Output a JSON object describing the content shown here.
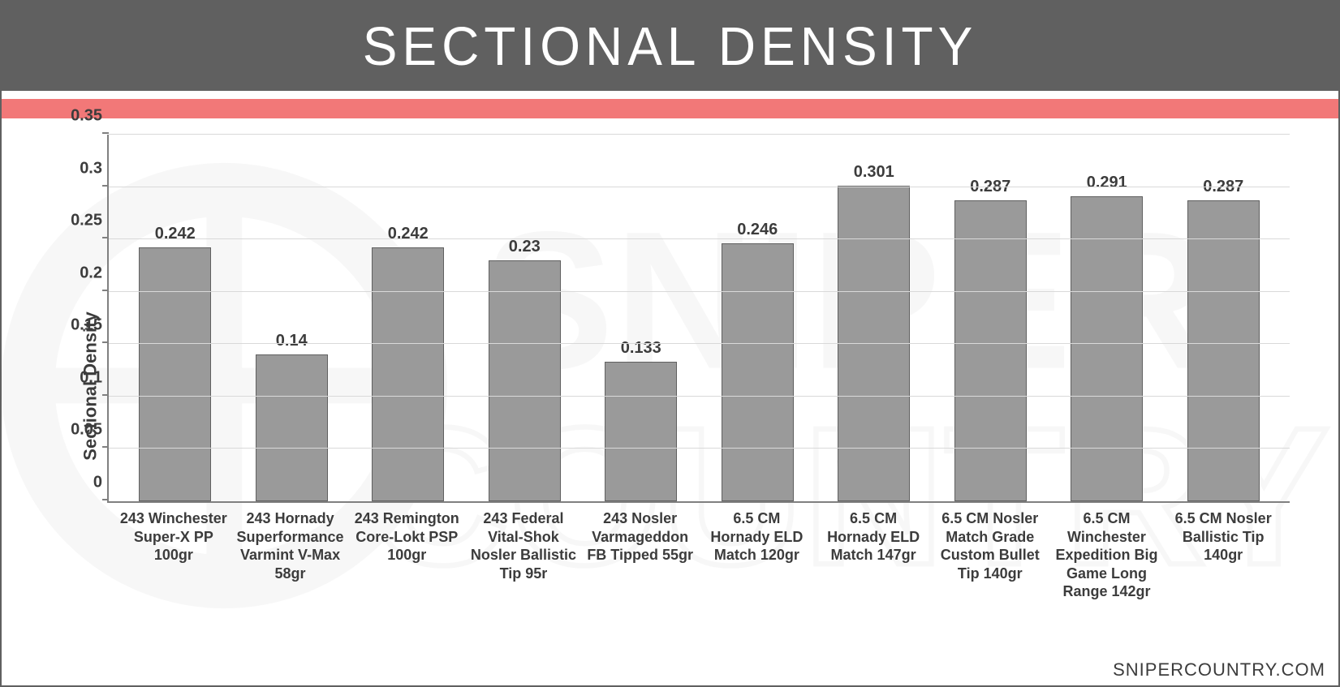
{
  "header": {
    "title": "SECTIONAL DENSITY",
    "bg_color": "#606060",
    "text_color": "#ffffff",
    "accent_color": "#f27878"
  },
  "footer": {
    "text": "SNIPERCOUNTRY.COM"
  },
  "chart": {
    "type": "bar",
    "ylabel": "Sectional Density",
    "ylim": [
      0,
      0.35
    ],
    "yticks": [
      0,
      0.05,
      0.1,
      0.15,
      0.2,
      0.25,
      0.3,
      0.35
    ],
    "bar_fill": "#9a9a9a",
    "bar_border": "#606060",
    "grid_color": "#d9d9d9",
    "axis_color": "#808080",
    "label_color": "#3c3c3c",
    "background_color": "#ffffff",
    "value_fontsize": 20,
    "label_fontsize": 18,
    "ylabel_fontsize": 22,
    "bar_width_ratio": 0.62,
    "categories": [
      "243 Winchester Super-X PP 100gr",
      "243 Hornady Superformance Varmint V-Max 58gr",
      "243 Remington Core-Lokt PSP 100gr",
      "243 Federal Vital-Shok Nosler Ballistic Tip 95r",
      "243 Nosler Varmageddon FB Tipped 55gr",
      "6.5 CM Hornady ELD Match 120gr",
      "6.5 CM Hornady ELD Match 147gr",
      "6.5 CM Nosler Match Grade Custom Bullet Tip 140gr",
      "6.5 CM Winchester Expedition Big Game Long Range 142gr",
      "6.5 CM Nosler Ballistic Tip 140gr"
    ],
    "values": [
      0.242,
      0.14,
      0.242,
      0.23,
      0.133,
      0.246,
      0.301,
      0.287,
      0.291,
      0.287
    ],
    "value_labels": [
      "0.242",
      "0.14",
      "0.242",
      "0.23",
      "0.133",
      "0.246",
      "0.301",
      "0.287",
      "0.291",
      "0.287"
    ]
  }
}
